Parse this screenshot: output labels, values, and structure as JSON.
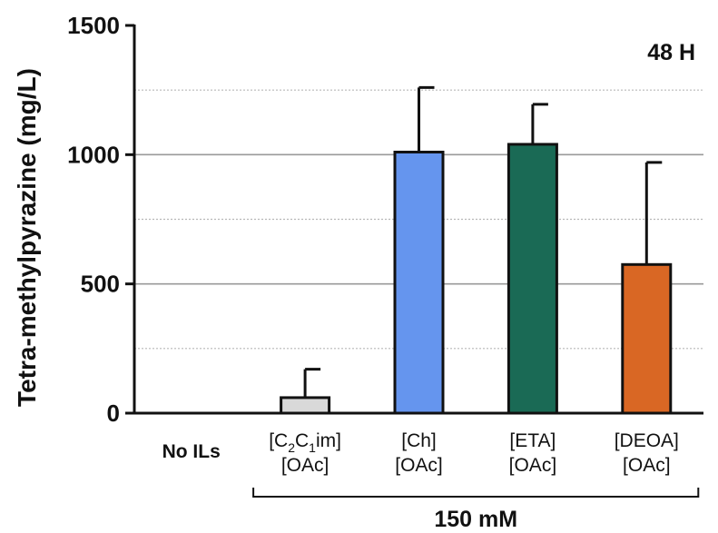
{
  "chart_data": {
    "type": "bar",
    "title": "",
    "xlabel": "",
    "ylabel": "Tetra-methylpyrazine (mg/L)",
    "ylim": [
      0,
      1500
    ],
    "yticks": [
      0,
      500,
      1000,
      1500
    ],
    "grid": {
      "major": [
        500,
        1000
      ],
      "minor": [
        250,
        750,
        1250
      ]
    },
    "annotation": "48 H",
    "group_bracket_label": "150 mM",
    "categories": [
      {
        "id": "no-ils",
        "lines": [
          "No ILs"
        ],
        "bold": true
      },
      {
        "id": "c2c1im-oac",
        "lines": [
          "[C2C1im]",
          "[OAc]"
        ],
        "bold": false
      },
      {
        "id": "ch-oac",
        "lines": [
          "[Ch]",
          "[OAc]"
        ],
        "bold": false
      },
      {
        "id": "eta-oac",
        "lines": [
          "[ETA]",
          "[OAc]"
        ],
        "bold": false
      },
      {
        "id": "deoa-oac",
        "lines": [
          "[DEOA]",
          "[OAc]"
        ],
        "bold": false
      }
    ],
    "values": [
      0,
      60,
      1010,
      1040,
      575
    ],
    "errors": [
      0,
      110,
      250,
      155,
      395
    ],
    "colors": [
      "#d9d9d9",
      "#d9d9d9",
      "#6595ee",
      "#1a6a55",
      "#d96724"
    ]
  }
}
